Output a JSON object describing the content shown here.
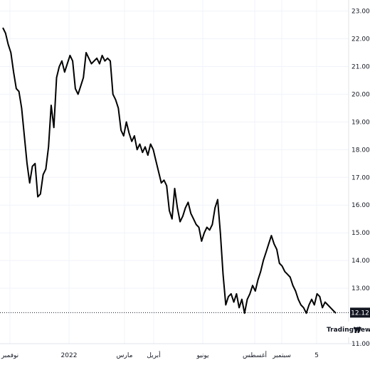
{
  "chart_data": {
    "type": "line",
    "title": "",
    "xlabel": "",
    "ylabel": "",
    "ylim": [
      11.0,
      23.4
    ],
    "grid": true,
    "y_ticks": [
      "23.00",
      "22.00",
      "21.00",
      "20.00",
      "19.00",
      "18.00",
      "17.00",
      "16.00",
      "15.00",
      "14.00",
      "13.00",
      "11.00"
    ],
    "x_ticks": [
      "نوفمبر",
      "2022",
      "مارس",
      "أبريل",
      "يونيو",
      "أغسطس",
      "سبتمبر",
      "5"
    ],
    "last_price": 12.12,
    "last_price_label": "12.12",
    "line_color": "#000000",
    "series": [
      {
        "values": [
          22.4,
          22.2,
          21.8,
          21.5,
          20.8,
          20.2,
          20.1,
          19.5,
          18.5,
          17.5,
          16.8,
          17.4,
          17.5,
          16.3,
          16.4,
          17.1,
          17.3,
          18.1,
          19.6,
          18.8,
          20.6,
          21.0,
          21.2,
          20.8,
          21.1,
          21.4,
          21.2,
          20.2,
          20.0,
          20.3,
          20.6,
          21.5,
          21.3,
          21.1,
          21.2,
          21.3,
          21.1,
          21.4,
          21.2,
          21.3,
          21.2,
          20.0,
          19.8,
          19.5,
          18.7,
          18.5,
          19.0,
          18.6,
          18.3,
          18.5,
          18.0,
          18.2,
          17.9,
          18.1,
          17.8,
          18.2,
          18.0,
          17.6,
          17.2,
          16.8,
          16.9,
          16.7,
          15.8,
          15.5,
          16.6,
          15.9,
          15.4,
          15.6,
          15.9,
          16.1,
          15.7,
          15.5,
          15.3,
          15.2,
          14.7,
          15.0,
          15.2,
          15.1,
          15.3,
          15.9,
          16.2,
          15.0,
          13.5,
          12.4,
          12.7,
          12.8,
          12.5,
          12.8,
          12.3,
          12.6,
          12.1,
          12.6,
          12.8,
          13.1,
          12.9,
          13.3,
          13.6,
          14.0,
          14.3,
          14.6,
          14.9,
          14.6,
          14.4,
          13.9,
          13.8,
          13.6,
          13.5,
          13.4,
          13.1,
          12.9,
          12.6,
          12.4,
          12.3,
          12.1,
          12.4,
          12.6,
          12.4,
          12.8,
          12.7,
          12.3,
          12.5,
          12.4,
          12.3,
          12.2,
          12.1
        ]
      }
    ]
  },
  "watermark": {
    "text": "TradingView",
    "logo": "tradingview-logo-icon"
  }
}
